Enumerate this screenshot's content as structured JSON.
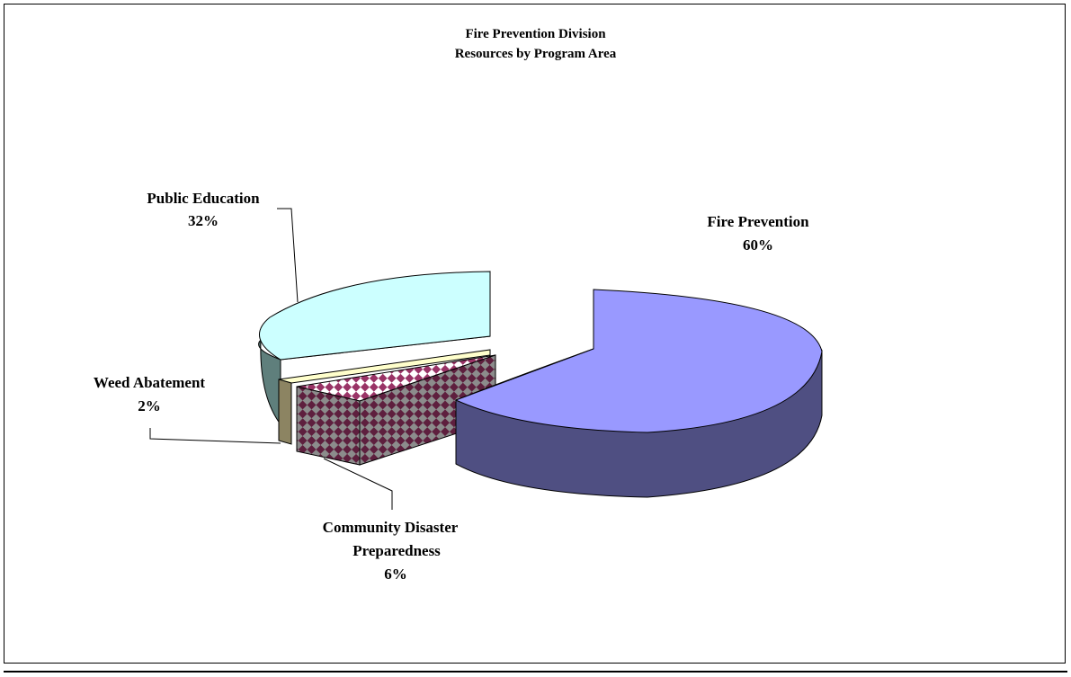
{
  "chart_data": {
    "type": "pie",
    "style": "3d-exploded",
    "title": "Fire Prevention Division",
    "subtitle": "Resources by Program Area",
    "legend": "none",
    "slices": [
      {
        "label": "Fire Prevention",
        "value": 60,
        "display": "60%",
        "color": "#9999ff",
        "side_color": "#4f4f82"
      },
      {
        "label": "Community Disaster Preparedness",
        "label_lines": [
          "Community Disaster",
          "Preparedness"
        ],
        "value": 6,
        "display": "6%",
        "color": "#993366",
        "pattern": "checker"
      },
      {
        "label": "Weed Abatement",
        "value": 2,
        "display": "2%",
        "color": "#ffffcc",
        "side_color": "#8c8462"
      },
      {
        "label": "Public Education",
        "value": 32,
        "display": "32%",
        "color": "#ccffff",
        "side_color": "#5f7f7c"
      }
    ]
  }
}
